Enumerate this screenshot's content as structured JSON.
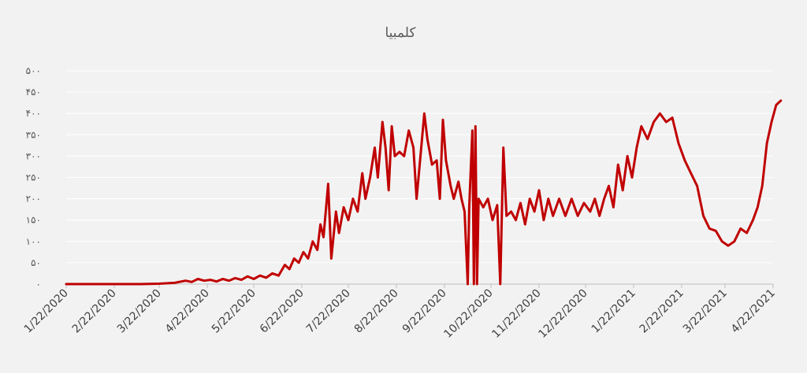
{
  "chart_data": {
    "type": "line",
    "title": "کلمبیا",
    "xlabel": "",
    "ylabel": "",
    "ylim": [
      0,
      500
    ],
    "grid": true,
    "legend": "none",
    "y_ticks": [
      {
        "value": 0,
        "label": "۰"
      },
      {
        "value": 50,
        "label": "۵۰"
      },
      {
        "value": 100,
        "label": "۱۰۰"
      },
      {
        "value": 150,
        "label": "۱۵۰"
      },
      {
        "value": 200,
        "label": "۲۰۰"
      },
      {
        "value": 250,
        "label": "۲۵۰"
      },
      {
        "value": 300,
        "label": "۳۰۰"
      },
      {
        "value": 350,
        "label": "۳۵۰"
      },
      {
        "value": 400,
        "label": "۴۰۰"
      },
      {
        "value": 450,
        "label": "۴۵۰"
      },
      {
        "value": 500,
        "label": "۵۰۰"
      }
    ],
    "x_ticks": [
      "1/22/2020",
      "2/22/2020",
      "3/22/2020",
      "4/22/2020",
      "5/22/2020",
      "6/22/2020",
      "7/22/2020",
      "8/22/2020",
      "9/22/2020",
      "10/22/2020",
      "11/22/2020",
      "12/22/2020",
      "1/22/2021",
      "2/22/2021",
      "3/22/2021",
      "4/22/2021"
    ],
    "x_range": [
      "2020-01-22",
      "2021-04-22"
    ],
    "color": "#c00000",
    "series": [
      {
        "points": [
          [
            "2020-01-22",
            0
          ],
          [
            "2020-02-22",
            0
          ],
          [
            "2020-03-10",
            0
          ],
          [
            "2020-03-22",
            1
          ],
          [
            "2020-04-01",
            3
          ],
          [
            "2020-04-08",
            8
          ],
          [
            "2020-04-12",
            5
          ],
          [
            "2020-04-16",
            12
          ],
          [
            "2020-04-20",
            8
          ],
          [
            "2020-04-24",
            10
          ],
          [
            "2020-04-28",
            6
          ],
          [
            "2020-05-02",
            12
          ],
          [
            "2020-05-06",
            8
          ],
          [
            "2020-05-10",
            14
          ],
          [
            "2020-05-14",
            10
          ],
          [
            "2020-05-18",
            18
          ],
          [
            "2020-05-22",
            12
          ],
          [
            "2020-05-26",
            20
          ],
          [
            "2020-05-30",
            15
          ],
          [
            "2020-06-03",
            25
          ],
          [
            "2020-06-07",
            20
          ],
          [
            "2020-06-11",
            45
          ],
          [
            "2020-06-14",
            35
          ],
          [
            "2020-06-17",
            60
          ],
          [
            "2020-06-20",
            50
          ],
          [
            "2020-06-23",
            75
          ],
          [
            "2020-06-26",
            60
          ],
          [
            "2020-06-29",
            100
          ],
          [
            "2020-07-02",
            80
          ],
          [
            "2020-07-04",
            140
          ],
          [
            "2020-07-06",
            110
          ],
          [
            "2020-07-09",
            235
          ],
          [
            "2020-07-11",
            60
          ],
          [
            "2020-07-14",
            170
          ],
          [
            "2020-07-16",
            120
          ],
          [
            "2020-07-19",
            180
          ],
          [
            "2020-07-22",
            150
          ],
          [
            "2020-07-25",
            200
          ],
          [
            "2020-07-28",
            170
          ],
          [
            "2020-07-31",
            260
          ],
          [
            "2020-08-02",
            200
          ],
          [
            "2020-08-05",
            250
          ],
          [
            "2020-08-08",
            320
          ],
          [
            "2020-08-10",
            250
          ],
          [
            "2020-08-13",
            380
          ],
          [
            "2020-08-15",
            320
          ],
          [
            "2020-08-17",
            220
          ],
          [
            "2020-08-19",
            370
          ],
          [
            "2020-08-21",
            300
          ],
          [
            "2020-08-24",
            310
          ],
          [
            "2020-08-27",
            300
          ],
          [
            "2020-08-30",
            360
          ],
          [
            "2020-09-02",
            320
          ],
          [
            "2020-09-04",
            200
          ],
          [
            "2020-09-07",
            320
          ],
          [
            "2020-09-09",
            400
          ],
          [
            "2020-09-11",
            340
          ],
          [
            "2020-09-14",
            280
          ],
          [
            "2020-09-17",
            290
          ],
          [
            "2020-09-19",
            200
          ],
          [
            "2020-09-21",
            385
          ],
          [
            "2020-09-23",
            290
          ],
          [
            "2020-09-26",
            230
          ],
          [
            "2020-09-28",
            200
          ],
          [
            "2020-10-01",
            240
          ],
          [
            "2020-10-03",
            200
          ],
          [
            "2020-10-05",
            170
          ],
          [
            "2020-10-07",
            0
          ],
          [
            "2020-10-08",
            180
          ],
          [
            "2020-10-10",
            360
          ],
          [
            "2020-10-11",
            0
          ],
          [
            "2020-10-12",
            370
          ],
          [
            "2020-10-13",
            0
          ],
          [
            "2020-10-14",
            200
          ],
          [
            "2020-10-17",
            180
          ],
          [
            "2020-10-20",
            200
          ],
          [
            "2020-10-23",
            150
          ],
          [
            "2020-10-26",
            185
          ],
          [
            "2020-10-28",
            0
          ],
          [
            "2020-10-30",
            320
          ],
          [
            "2020-11-01",
            160
          ],
          [
            "2020-11-04",
            170
          ],
          [
            "2020-11-07",
            150
          ],
          [
            "2020-11-10",
            190
          ],
          [
            "2020-11-13",
            140
          ],
          [
            "2020-11-16",
            200
          ],
          [
            "2020-11-19",
            170
          ],
          [
            "2020-11-22",
            220
          ],
          [
            "2020-11-25",
            150
          ],
          [
            "2020-11-28",
            200
          ],
          [
            "2020-12-01",
            160
          ],
          [
            "2020-12-05",
            200
          ],
          [
            "2020-12-09",
            160
          ],
          [
            "2020-12-13",
            200
          ],
          [
            "2020-12-17",
            160
          ],
          [
            "2020-12-21",
            190
          ],
          [
            "2020-12-25",
            170
          ],
          [
            "2020-12-28",
            200
          ],
          [
            "2020-12-31",
            160
          ],
          [
            "2021-01-03",
            200
          ],
          [
            "2021-01-06",
            230
          ],
          [
            "2021-01-09",
            180
          ],
          [
            "2021-01-12",
            280
          ],
          [
            "2021-01-15",
            220
          ],
          [
            "2021-01-18",
            300
          ],
          [
            "2021-01-21",
            250
          ],
          [
            "2021-01-24",
            320
          ],
          [
            "2021-01-27",
            370
          ],
          [
            "2021-01-31",
            340
          ],
          [
            "2021-02-04",
            380
          ],
          [
            "2021-02-08",
            400
          ],
          [
            "2021-02-12",
            380
          ],
          [
            "2021-02-16",
            390
          ],
          [
            "2021-02-20",
            330
          ],
          [
            "2021-02-24",
            290
          ],
          [
            "2021-02-28",
            260
          ],
          [
            "2021-03-04",
            230
          ],
          [
            "2021-03-08",
            160
          ],
          [
            "2021-03-12",
            130
          ],
          [
            "2021-03-16",
            125
          ],
          [
            "2021-03-20",
            100
          ],
          [
            "2021-03-24",
            90
          ],
          [
            "2021-03-28",
            100
          ],
          [
            "2021-04-01",
            130
          ],
          [
            "2021-04-05",
            120
          ],
          [
            "2021-04-09",
            150
          ],
          [
            "2021-04-12",
            180
          ],
          [
            "2021-04-15",
            230
          ],
          [
            "2021-04-18",
            330
          ],
          [
            "2021-04-21",
            380
          ],
          [
            "2021-04-24",
            420
          ],
          [
            "2021-04-27",
            430
          ]
        ]
      }
    ]
  }
}
